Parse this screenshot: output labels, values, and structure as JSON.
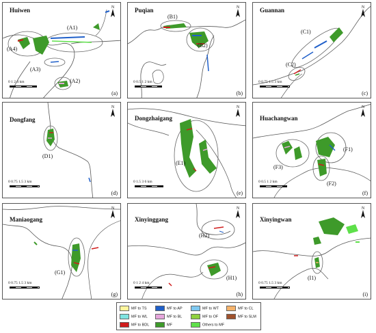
{
  "panels": [
    {
      "id": "a",
      "name": "Huiwen",
      "letter": "(a)",
      "zones": [
        "(A1)",
        "(A2)",
        "(A3)",
        "(A4)"
      ],
      "scale_ticks": "0  1  2       4 km"
    },
    {
      "id": "b",
      "name": "Puqian",
      "letter": "(b)",
      "zones": [
        "(B1)",
        "(B2)"
      ],
      "scale_ticks": "0  0.5  1       2 km"
    },
    {
      "id": "c",
      "name": "Guannan",
      "letter": "(c)",
      "zones": [
        "(C1)",
        "(C2)"
      ],
      "scale_ticks": "0  0.75 1.5       3 km"
    },
    {
      "id": "d",
      "name": "Dongfang",
      "letter": "(d)",
      "zones": [
        "(D1)"
      ],
      "scale_ticks": "0  0.75 1.5       3 km"
    },
    {
      "id": "e",
      "name": "Dongzhaigang",
      "letter": "(e)",
      "zones": [
        "(E1)"
      ],
      "scale_ticks": "0  1.5  3       6 km"
    },
    {
      "id": "f",
      "name": "Huachangwan",
      "letter": "(f)",
      "zones": [
        "(F1)",
        "(F2)",
        "(F3)"
      ],
      "scale_ticks": "0  0.5  1       2 km"
    },
    {
      "id": "g",
      "name": "Maniaogang",
      "letter": "(g)",
      "zones": [
        "(G1)"
      ],
      "scale_ticks": "0  0.75 1.5       3 km"
    },
    {
      "id": "h",
      "name": "Xinyinggang",
      "letter": "(h)",
      "zones": [
        "(H1)",
        "(H2)"
      ],
      "scale_ticks": "0  1  2       4 km"
    },
    {
      "id": "i",
      "name": "Xinyingwan",
      "letter": "(i)",
      "zones": [
        "(I1)"
      ],
      "scale_ticks": "0 0.75 1.5       3 km"
    }
  ],
  "north_label": "N",
  "legend": [
    {
      "label": "MF to TS",
      "color": "#fff59d"
    },
    {
      "label": "MF to AP",
      "color": "#1f5fc9"
    },
    {
      "label": "MF to WT",
      "color": "#7ec8f0"
    },
    {
      "label": "MF to CL",
      "color": "#f5b36b"
    },
    {
      "label": "MF to WL",
      "color": "#7fe3e0"
    },
    {
      "label": "MF to BL",
      "color": "#e6a6dc"
    },
    {
      "label": "MF to OF",
      "color": "#8fd13f"
    },
    {
      "label": "MF to SLM",
      "color": "#a0522d"
    },
    {
      "label": "MF to BDL",
      "color": "#d01c1c"
    },
    {
      "label": "MF",
      "color": "#3e9a2a"
    },
    {
      "label": "Others to MF",
      "color": "#5ee04a"
    }
  ]
}
